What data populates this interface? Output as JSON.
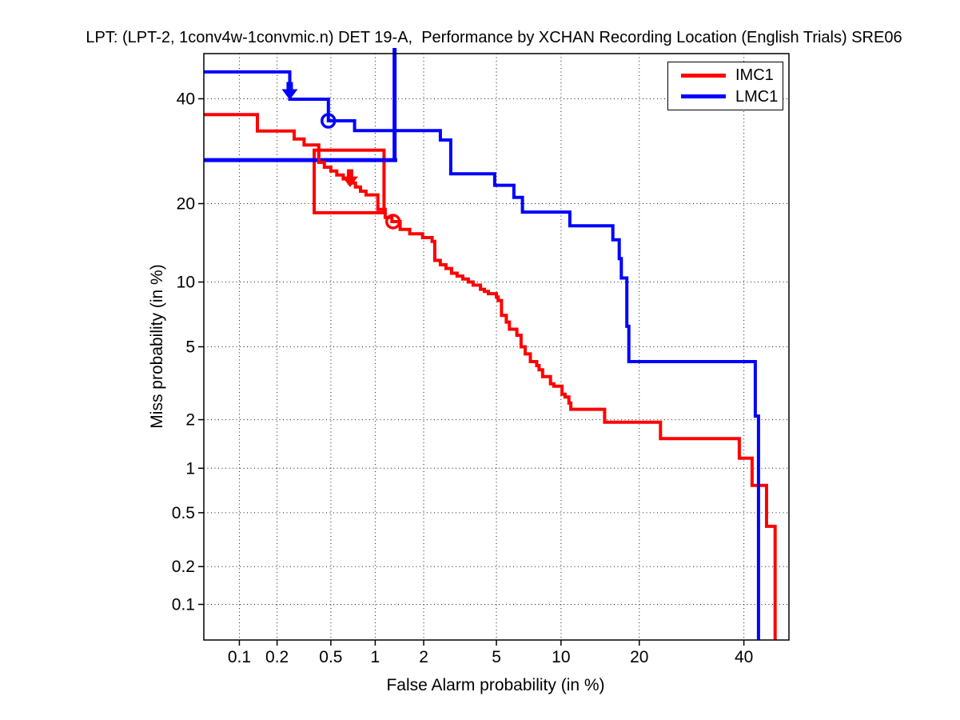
{
  "chart_data": {
    "type": "line",
    "subtype": "DET curve (normal-deviate / probit scale on both axes)",
    "title": "LPT: (LPT-2, 1conv4w-1convmic.n) DET 19-A,  Performance by XCHAN Recording Location (English Trials) SRE06",
    "xlabel": "False Alarm probability (in %)",
    "ylabel": "Miss probability (in %)",
    "xlim": [
      0.05,
      50
    ],
    "ylim": [
      0.05,
      50
    ],
    "xticks": [
      0.1,
      0.2,
      0.5,
      1,
      2,
      5,
      10,
      20,
      40
    ],
    "yticks": [
      0.1,
      0.2,
      0.5,
      1,
      2,
      5,
      10,
      20,
      40
    ],
    "grid": "dotted",
    "axis_color": "#000000",
    "legend": {
      "position": "top-right"
    },
    "series": [
      {
        "name": "IMC1",
        "color": "#ff0000",
        "points": [
          [
            0.05,
            36.6
          ],
          [
            0.14,
            36.6
          ],
          [
            0.14,
            33.2
          ],
          [
            0.27,
            33.2
          ],
          [
            0.27,
            31.6
          ],
          [
            0.32,
            31.6
          ],
          [
            0.32,
            30.4
          ],
          [
            0.41,
            30.4
          ],
          [
            0.41,
            27.1
          ],
          [
            0.45,
            27.1
          ],
          [
            0.45,
            26.2
          ],
          [
            0.5,
            26.2
          ],
          [
            0.5,
            25.5
          ],
          [
            0.55,
            25.5
          ],
          [
            0.55,
            24.8
          ],
          [
            0.61,
            24.8
          ],
          [
            0.61,
            24.1
          ],
          [
            0.67,
            24.1
          ],
          [
            0.67,
            23.4
          ],
          [
            0.74,
            23.4
          ],
          [
            0.74,
            22.7
          ],
          [
            0.8,
            22.7
          ],
          [
            0.8,
            22.0
          ],
          [
            0.87,
            22.0
          ],
          [
            0.87,
            21.4
          ],
          [
            1.04,
            21.4
          ],
          [
            1.04,
            19.1
          ],
          [
            1.16,
            19.1
          ],
          [
            1.16,
            17.9
          ],
          [
            1.28,
            17.9
          ],
          [
            1.28,
            17.3
          ],
          [
            1.44,
            17.3
          ],
          [
            1.44,
            16.2
          ],
          [
            1.65,
            16.2
          ],
          [
            1.65,
            15.6
          ],
          [
            1.97,
            15.6
          ],
          [
            1.97,
            15.1
          ],
          [
            2.24,
            15.1
          ],
          [
            2.24,
            14.6
          ],
          [
            2.32,
            14.6
          ],
          [
            2.32,
            12.3
          ],
          [
            2.5,
            12.3
          ],
          [
            2.5,
            11.8
          ],
          [
            2.69,
            11.8
          ],
          [
            2.69,
            11.4
          ],
          [
            2.89,
            11.4
          ],
          [
            2.89,
            10.9
          ],
          [
            3.1,
            10.9
          ],
          [
            3.1,
            10.6
          ],
          [
            3.33,
            10.6
          ],
          [
            3.33,
            10.3
          ],
          [
            3.57,
            10.3
          ],
          [
            3.57,
            10.0
          ],
          [
            3.79,
            10.0
          ],
          [
            3.79,
            9.7
          ],
          [
            4.14,
            9.7
          ],
          [
            4.14,
            9.3
          ],
          [
            4.34,
            9.3
          ],
          [
            4.34,
            9.1
          ],
          [
            4.55,
            9.1
          ],
          [
            4.55,
            8.9
          ],
          [
            5.0,
            8.9
          ],
          [
            5.0,
            8.6
          ],
          [
            5.1,
            8.6
          ],
          [
            5.1,
            8.3
          ],
          [
            5.3,
            8.3
          ],
          [
            5.3,
            7.1
          ],
          [
            5.6,
            7.1
          ],
          [
            5.6,
            6.6
          ],
          [
            5.8,
            6.6
          ],
          [
            5.8,
            6.1
          ],
          [
            6.3,
            6.1
          ],
          [
            6.3,
            5.7
          ],
          [
            6.6,
            5.7
          ],
          [
            6.6,
            5.0
          ],
          [
            6.9,
            5.0
          ],
          [
            6.9,
            4.6
          ],
          [
            7.3,
            4.6
          ],
          [
            7.3,
            4.2
          ],
          [
            7.8,
            4.2
          ],
          [
            7.8,
            4.0
          ],
          [
            8.0,
            4.0
          ],
          [
            8.0,
            3.8
          ],
          [
            8.3,
            3.8
          ],
          [
            8.3,
            3.5
          ],
          [
            9.0,
            3.5
          ],
          [
            9.0,
            3.2
          ],
          [
            9.3,
            3.2
          ],
          [
            9.3,
            3.1
          ],
          [
            10.1,
            3.1
          ],
          [
            10.1,
            2.8
          ],
          [
            10.4,
            2.8
          ],
          [
            10.4,
            2.7
          ],
          [
            10.8,
            2.7
          ],
          [
            10.8,
            2.5
          ],
          [
            11.0,
            2.5
          ],
          [
            11.0,
            2.3
          ],
          [
            15.0,
            2.3
          ],
          [
            15.0,
            1.93
          ],
          [
            23.5,
            1.93
          ],
          [
            23.5,
            1.54
          ],
          [
            39.0,
            1.54
          ],
          [
            39.0,
            1.16
          ],
          [
            41.8,
            1.16
          ],
          [
            41.8,
            0.77
          ],
          [
            45.0,
            0.77
          ],
          [
            45.0,
            0.4
          ],
          [
            46.9,
            0.4
          ],
          [
            46.9,
            0.05
          ]
        ]
      },
      {
        "name": "LMC1",
        "color": "#0000ff",
        "points": [
          [
            0.05,
            45.9
          ],
          [
            0.25,
            45.9
          ],
          [
            0.25,
            39.9
          ],
          [
            0.48,
            39.9
          ],
          [
            0.48,
            35.3
          ],
          [
            0.73,
            35.3
          ],
          [
            0.73,
            33.3
          ],
          [
            2.5,
            33.3
          ],
          [
            2.5,
            31.4
          ],
          [
            2.86,
            31.4
          ],
          [
            2.86,
            25.0
          ],
          [
            4.9,
            25.0
          ],
          [
            4.9,
            23.0
          ],
          [
            6.1,
            23.0
          ],
          [
            6.1,
            21.0
          ],
          [
            6.7,
            21.0
          ],
          [
            6.7,
            18.7
          ],
          [
            10.9,
            18.7
          ],
          [
            10.9,
            16.7
          ],
          [
            16.1,
            16.7
          ],
          [
            16.1,
            14.8
          ],
          [
            17.0,
            14.8
          ],
          [
            17.0,
            12.5
          ],
          [
            17.3,
            12.5
          ],
          [
            17.3,
            10.4
          ],
          [
            18.1,
            10.4
          ],
          [
            18.1,
            6.3
          ],
          [
            18.4,
            6.3
          ],
          [
            18.4,
            4.2
          ],
          [
            42.5,
            4.2
          ],
          [
            42.5,
            2.1
          ],
          [
            43.2,
            2.1
          ],
          [
            43.2,
            0.05
          ]
        ]
      }
    ],
    "markers": [
      {
        "series": "IMC1",
        "shape": "down-arrow",
        "fa": 0.68,
        "miss": 22.8,
        "color": "#ff0000"
      },
      {
        "series": "IMC1",
        "shape": "open-circle",
        "fa": 1.3,
        "miss": 17.3,
        "color": "#ff0000"
      },
      {
        "series": "LMC1",
        "shape": "down-arrow",
        "fa": 0.25,
        "miss": 39.9,
        "color": "#0000ff"
      },
      {
        "series": "LMC1",
        "shape": "open-circle",
        "fa": 0.48,
        "miss": 35.3,
        "color": "#0000ff"
      }
    ],
    "annotations": [
      {
        "type": "rect",
        "series": "IMC1",
        "color": "#ff0000",
        "fa": [
          0.38,
          1.14
        ],
        "miss": [
          18.6,
          29.4
        ]
      },
      {
        "type": "hline",
        "series": "LMC1",
        "color": "#0000ff",
        "miss": 27.5,
        "fa": [
          0.05,
          1.38
        ]
      },
      {
        "type": "vline",
        "series": "LMC1",
        "color": "#0000ff",
        "fa": 1.33,
        "miss": [
          27.5,
          50
        ]
      }
    ]
  }
}
